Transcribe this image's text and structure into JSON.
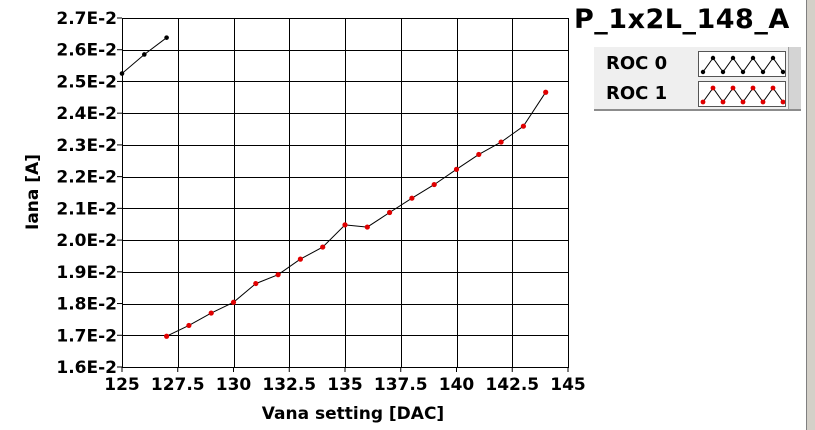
{
  "chart_data": {
    "type": "line",
    "title": "P_1x2L_148_A",
    "xlabel": "Vana setting [DAC]",
    "ylabel": "Iana [A]",
    "xlim": [
      125,
      145
    ],
    "ylim": [
      0.016,
      0.027
    ],
    "x_ticks": [
      "125",
      "127.5",
      "130",
      "132.5",
      "135",
      "137.5",
      "140",
      "142.5",
      "145"
    ],
    "x_tick_values": [
      125,
      127.5,
      130,
      132.5,
      135,
      137.5,
      140,
      142.5,
      145
    ],
    "y_ticks": [
      "1.6E-2",
      "1.7E-2",
      "1.8E-2",
      "1.9E-2",
      "2.0E-2",
      "2.1E-2",
      "2.2E-2",
      "2.3E-2",
      "2.4E-2",
      "2.5E-2",
      "2.6E-2",
      "2.7E-2"
    ],
    "y_tick_values": [
      0.016,
      0.017,
      0.018,
      0.019,
      0.02,
      0.021,
      0.022,
      0.023,
      0.024,
      0.025,
      0.026,
      0.027
    ],
    "grid": true,
    "legend_position": "top-right",
    "series": [
      {
        "name": "ROC 0",
        "color": "#000000",
        "x": [
          125,
          126,
          127
        ],
        "y": [
          0.02525,
          0.02585,
          0.02638
        ]
      },
      {
        "name": "ROC 1",
        "color": "#e00000",
        "x": [
          127,
          128,
          129,
          130,
          131,
          132,
          133,
          134,
          135,
          136,
          137,
          138,
          139,
          140,
          141,
          142,
          143,
          144
        ],
        "y": [
          0.01697,
          0.01731,
          0.0177,
          0.01804,
          0.01863,
          0.01891,
          0.0194,
          0.01978,
          0.02048,
          0.02041,
          0.02087,
          0.02132,
          0.02175,
          0.02223,
          0.0227,
          0.02309,
          0.02359,
          0.02466
        ]
      }
    ]
  }
}
